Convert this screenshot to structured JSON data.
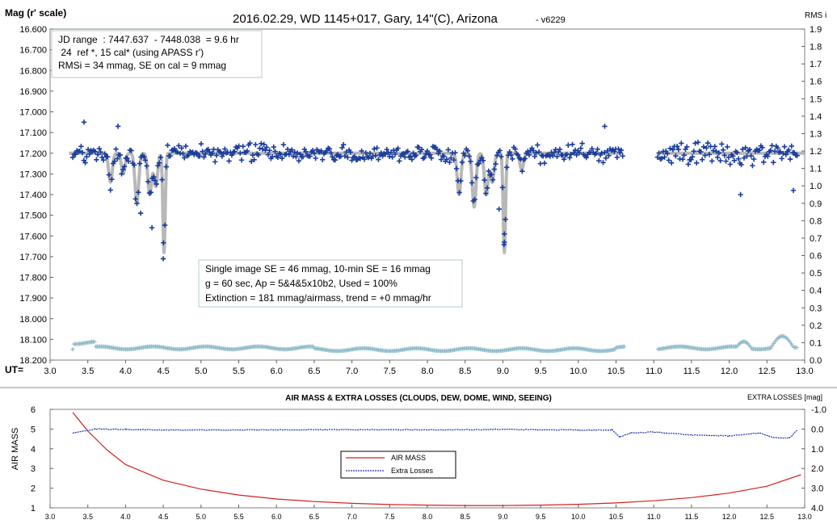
{
  "chart_data": [
    {
      "type": "scatter",
      "title": "2016.02.29,  WD 1145+017,  Gary,  14\"(C), Arizona",
      "title_suffix": "- v6229",
      "ylabel": "Mag (r' scale)",
      "y2label": "RMS i",
      "xlabel": "UT=",
      "xlim": [
        3.0,
        13.0
      ],
      "ylim": [
        16.6,
        18.2
      ],
      "y_reversed": true,
      "y2lim": [
        0.0,
        1.9
      ],
      "x_ticks": [
        "3.0",
        "3.5",
        "4.0",
        "4.5",
        "5.0",
        "5.5",
        "6.0",
        "6.5",
        "7.0",
        "7.5",
        "8.0",
        "8.5",
        "9.0",
        "9.5",
        "10.0",
        "10.5",
        "11.0",
        "11.5",
        "12.0",
        "12.5",
        "13.0"
      ],
      "y_ticks": [
        "16.600",
        "16.700",
        "16.800",
        "16.900",
        "17.000",
        "17.100",
        "17.200",
        "17.300",
        "17.400",
        "17.500",
        "17.600",
        "17.700",
        "17.800",
        "17.900",
        "18.000",
        "18.100",
        "18.200"
      ],
      "y2_ticks": [
        "1.9",
        "1.8",
        "1.7",
        "1.6",
        "1.5",
        "1.4",
        "1.3",
        "1.2",
        "1.1",
        "1.0",
        "0.9",
        "0.8",
        "0.7",
        "0.6",
        "0.5",
        "0.4",
        "0.3",
        "0.2",
        "0.1",
        "0.0"
      ],
      "grid": false,
      "info_box_top": [
        "JD range  : 7447.637  - 7448.038  = 9.6 hr",
        " 24  ref *, 15 cal* (using APASS r')",
        "RMSi = 34 mmag, SE on cal = 9 mmag"
      ],
      "info_box_mid": [
        "Single image SE = 46 mmag, 10-min SE = 16 mmag",
        "g = 60 sec, Ap = 5&4&5x10b2, Used = 100%",
        "Extinction = 181 mmag/airmass, trend = +0 mmag/hr"
      ],
      "model_baseline_mag": 17.2,
      "model_dips": [
        {
          "x": 3.8,
          "depth": 0.14
        },
        {
          "x": 3.97,
          "depth": 0.1
        },
        {
          "x": 4.15,
          "depth": 0.24
        },
        {
          "x": 4.32,
          "depth": 0.2
        },
        {
          "x": 4.4,
          "depth": 0.16
        },
        {
          "x": 4.51,
          "depth": 0.48
        },
        {
          "x": 8.42,
          "depth": 0.2
        },
        {
          "x": 8.62,
          "depth": 0.26
        },
        {
          "x": 8.78,
          "depth": 0.2
        },
        {
          "x": 8.86,
          "depth": 0.14
        },
        {
          "x": 9.02,
          "depth": 0.48
        },
        {
          "x": 9.25,
          "depth": 0.08
        }
      ],
      "series": [
        {
          "role": "photometry",
          "marker": "+",
          "color": "#1a3d9c",
          "x_range": [
            3.3,
            12.9
          ],
          "x_gap": [
            10.6,
            11.05
          ],
          "approx_count": 520
        },
        {
          "role": "rms",
          "marker": "+",
          "color": "#8db9c8",
          "values_rms_typical": 0.07
        }
      ],
      "notable_points": [
        {
          "x": 3.45,
          "y": 17.05
        },
        {
          "x": 3.9,
          "y": 17.07
        },
        {
          "x": 4.2,
          "y": 17.49
        },
        {
          "x": 4.35,
          "y": 17.56
        },
        {
          "x": 4.5,
          "y": 17.71
        },
        {
          "x": 8.95,
          "y": 17.47
        },
        {
          "x": 9.02,
          "y": 17.59
        },
        {
          "x": 9.02,
          "y": 17.63
        },
        {
          "x": 10.35,
          "y": 17.07
        },
        {
          "x": 12.15,
          "y": 17.4
        },
        {
          "x": 12.85,
          "y": 17.38
        }
      ]
    },
    {
      "type": "line",
      "title": "AIR MASS & EXTRA LOSSES (CLOUDS, DEW, DOME, WIND, SEEING)",
      "ylabel": "AIR MASS",
      "y2label": "EXTRA LOSSES [mag]",
      "xlim": [
        3.0,
        13.0
      ],
      "ylim": [
        1,
        6
      ],
      "y2lim": [
        -1.0,
        4.0
      ],
      "x_ticks": [
        "3.0",
        "3.5",
        "4.0",
        "4.5",
        "5.0",
        "5.5",
        "6.0",
        "6.5",
        "7.0",
        "7.5",
        "8.0",
        "8.5",
        "9.0",
        "9.5",
        "10.0",
        "10.5",
        "11.0",
        "11.5",
        "12.0",
        "12.5",
        "13.0"
      ],
      "y_ticks": [
        "6",
        "5",
        "4",
        "3",
        "2",
        "1"
      ],
      "y2_ticks": [
        "-1.0",
        "0.0",
        "1.0",
        "2.0",
        "3.0",
        "4.0"
      ],
      "legend_position": "center",
      "series": [
        {
          "name": "AIR MASS",
          "color": "#d42020",
          "x": [
            3.3,
            3.5,
            3.75,
            4.0,
            4.5,
            5.0,
            5.5,
            6.0,
            6.5,
            7.0,
            7.5,
            8.0,
            8.5,
            9.0,
            9.5,
            10.0,
            10.5,
            11.0,
            11.5,
            12.0,
            12.5,
            12.95
          ],
          "values": [
            5.85,
            4.9,
            3.95,
            3.2,
            2.4,
            1.95,
            1.65,
            1.45,
            1.32,
            1.23,
            1.17,
            1.14,
            1.12,
            1.12,
            1.14,
            1.18,
            1.25,
            1.36,
            1.52,
            1.75,
            2.1,
            2.68
          ]
        },
        {
          "name": "Extra Losses",
          "color": "#2030b0",
          "x": [
            3.3,
            3.6,
            4.0,
            4.5,
            5.0,
            6.0,
            7.0,
            8.0,
            9.0,
            10.0,
            10.45,
            10.55,
            10.7,
            11.0,
            11.5,
            12.0,
            12.4,
            12.6,
            12.8,
            12.9
          ],
          "values": [
            0.2,
            0.0,
            0.02,
            0.05,
            0.05,
            0.04,
            0.03,
            0.04,
            0.02,
            0.05,
            0.05,
            0.4,
            0.2,
            0.15,
            0.3,
            0.35,
            0.2,
            0.45,
            0.45,
            0.05
          ]
        }
      ]
    }
  ]
}
